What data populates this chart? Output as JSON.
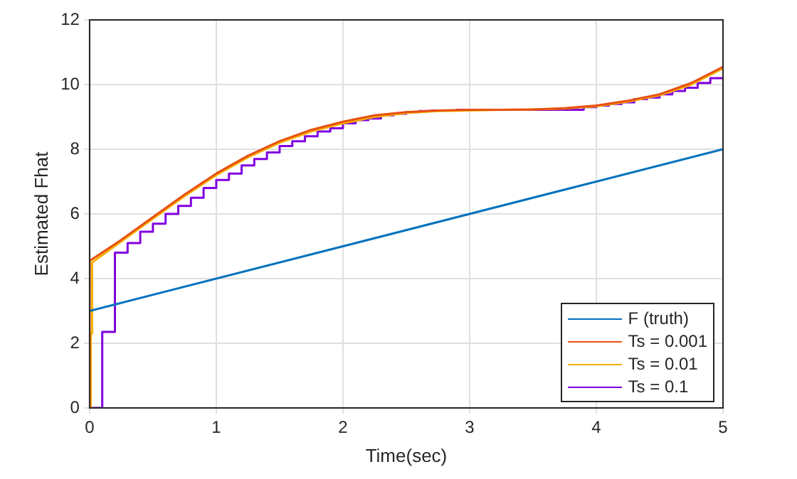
{
  "chart_data": {
    "type": "line",
    "xlabel": "Time(sec)",
    "ylabel": "Estimated Fhat",
    "xlim": [
      0,
      5
    ],
    "ylim": [
      0,
      12
    ],
    "xticks": [
      0,
      1,
      2,
      3,
      4,
      5
    ],
    "yticks": [
      0,
      2,
      4,
      6,
      8,
      10,
      12
    ],
    "grid": true,
    "legend": "bottom right",
    "line_style": "solid",
    "marker": "none",
    "series": [
      {
        "name": "F (truth)",
        "color": "#0072bd",
        "x": [
          0,
          5
        ],
        "values": [
          3,
          8
        ]
      },
      {
        "name": "Ts = 0.001",
        "color": "#e8500f",
        "x": [
          0,
          0.001,
          0.25,
          0.5,
          0.75,
          1,
          1.25,
          1.5,
          1.75,
          2,
          2.25,
          2.5,
          2.75,
          3,
          3.25,
          3.5,
          3.75,
          4,
          4.25,
          4.5,
          4.75,
          5
        ],
        "values": [
          0,
          4.55,
          5.2,
          5.9,
          6.6,
          7.25,
          7.8,
          8.25,
          8.6,
          8.85,
          9.05,
          9.15,
          9.2,
          9.22,
          9.22,
          9.23,
          9.27,
          9.35,
          9.5,
          9.7,
          10.05,
          10.55
        ]
      },
      {
        "name": "Ts = 0.01",
        "color": "#f5b000",
        "x": [
          0,
          0.01,
          0.01,
          0.02,
          0.02,
          0.25,
          0.5,
          0.75,
          1,
          1.25,
          1.5,
          1.75,
          2,
          2.25,
          2.5,
          2.75,
          3,
          3.25,
          3.5,
          3.75,
          4,
          4.25,
          4.5,
          4.75,
          5
        ],
        "values": [
          0,
          0,
          2.3,
          2.3,
          4.5,
          5.15,
          5.85,
          6.55,
          7.2,
          7.75,
          8.2,
          8.55,
          8.8,
          9,
          9.12,
          9.18,
          9.2,
          9.22,
          9.23,
          9.26,
          9.33,
          9.47,
          9.67,
          10,
          10.5
        ]
      },
      {
        "name": "Ts = 0.1",
        "color": "#8000e0",
        "type": "step",
        "x": [
          0,
          0.1,
          0.2,
          0.3,
          0.4,
          0.5,
          0.6,
          0.7,
          0.8,
          0.9,
          1,
          1.1,
          1.2,
          1.3,
          1.4,
          1.5,
          1.6,
          1.7,
          1.8,
          1.9,
          2,
          2.1,
          2.2,
          2.3,
          2.4,
          2.5,
          2.6,
          2.7,
          2.8,
          2.9,
          3,
          3.5,
          3.9,
          4,
          4.1,
          4.2,
          4.3,
          4.4,
          4.5,
          4.6,
          4.7,
          4.8,
          4.9,
          5
        ],
        "values": [
          0,
          0,
          2.35,
          4.8,
          5.1,
          5.45,
          5.7,
          6,
          6.25,
          6.5,
          6.8,
          7.05,
          7.25,
          7.5,
          7.7,
          7.9,
          8.1,
          8.25,
          8.4,
          8.55,
          8.65,
          8.8,
          8.9,
          8.95,
          9.05,
          9.1,
          9.15,
          9.18,
          9.2,
          9.2,
          9.22,
          9.22,
          9.22,
          9.3,
          9.35,
          9.4,
          9.45,
          9.55,
          9.6,
          9.7,
          9.8,
          9.9,
          10.05,
          10.2
        ]
      }
    ]
  }
}
